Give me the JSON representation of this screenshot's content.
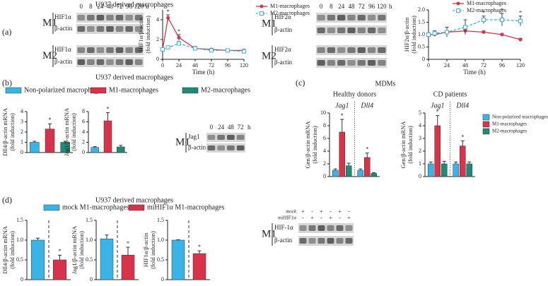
{
  "panels": {
    "a": {
      "label": "(a)",
      "title": "U937 derived macrophages"
    },
    "b": {
      "label": "(b)",
      "title": "U937 derived macrophages",
      "legend": [
        {
          "name": "Non-polarized macrophages",
          "color": "#3ab4e6"
        },
        {
          "name": "M1-macrophages",
          "color": "#d7334a"
        },
        {
          "name": "M2-macrophages",
          "color": "#1f8a78"
        }
      ]
    },
    "c": {
      "label": "(c)",
      "title": "MDMs",
      "legend": [
        {
          "name": "Non-polarized macrophages",
          "color": "#3ab4e6"
        },
        {
          "name": "M1-macrophages",
          "color": "#d7334a"
        },
        {
          "name": "M2-macrophages",
          "color": "#1f8a78"
        }
      ]
    },
    "d": {
      "label": "(d)",
      "title": "U937 derived macrophages",
      "legend": [
        {
          "name": "mock M1-macrophages",
          "color": "#3ab4e6"
        },
        {
          "name": "miHIF1α M1-macrophages",
          "color": "#d7334a"
        }
      ]
    }
  },
  "blots": [
    {
      "lanes": [
        "0",
        "8",
        "24",
        "48",
        "72",
        "96",
        "120"
      ],
      "unit": "h",
      "groups": [
        {
          "label": "M1",
          "rows": [
            "HIF1α",
            "β-actin"
          ]
        },
        {
          "label": "M2",
          "rows": [
            "HIF1α",
            "β-actin"
          ]
        }
      ]
    },
    {
      "lanes": [
        "0",
        "8",
        "24",
        "48",
        "72",
        "96",
        "120"
      ],
      "unit": "h",
      "groups": [
        {
          "label": "M1",
          "rows": [
            "HIF2α",
            "β-actin"
          ]
        },
        {
          "label": "M2",
          "rows": [
            "HIF2α",
            "β-actin"
          ]
        }
      ]
    },
    {
      "lanes": [
        "0",
        "24",
        "48",
        "72"
      ],
      "unit": "h",
      "groups": [
        {
          "label": "M1",
          "rows": [
            "Jag1",
            "β-actin"
          ]
        }
      ]
    },
    {
      "conditions": [
        {
          "label": "mock",
          "signs": [
            "+",
            "-",
            "+",
            "-",
            "+",
            "-"
          ]
        },
        {
          "label": "miHIF1α",
          "signs": [
            "-",
            "+",
            "-",
            "+",
            "-",
            "+"
          ]
        }
      ],
      "groups": [
        {
          "label": "M1",
          "rows": [
            "HIF-1α",
            "β-actin"
          ]
        }
      ]
    }
  ],
  "chart_data": [
    {
      "type": "line",
      "ylabel": [
        "HIF1α/β-actin",
        "(fold induction)"
      ],
      "xlabel": "Time (h)",
      "x": [
        0,
        8,
        24,
        48,
        72,
        96,
        120
      ],
      "xlim": [
        0,
        120
      ],
      "xticks": [
        0,
        24,
        48,
        72,
        96,
        120
      ],
      "ylim": [
        0,
        5
      ],
      "yticks": [
        0,
        2,
        4
      ],
      "series": [
        {
          "name": "M1-macrophages",
          "color": "#d7334a",
          "marker": "circle",
          "dash": false,
          "values": [
            1.0,
            4.2,
            2.2,
            1.1,
            1.0,
            0.9,
            0.9
          ],
          "errors": [
            0.1,
            0.3,
            0.3,
            0.2,
            0.1,
            0.1,
            0.1
          ],
          "stars": [
            null,
            "*",
            "*",
            null,
            null,
            null,
            null
          ]
        },
        {
          "name": "M2-macrophages",
          "color": "#3ab4e6",
          "marker": "square",
          "dash": true,
          "values": [
            1.0,
            1.2,
            1.6,
            1.1,
            0.9,
            0.9,
            0.8
          ],
          "errors": [
            0.1,
            0.1,
            0.2,
            0.1,
            0.1,
            0.1,
            0.1
          ],
          "stars": [
            null,
            null,
            null,
            null,
            null,
            null,
            null
          ]
        }
      ]
    },
    {
      "type": "line",
      "ylabel": [
        "HIF2α/β-actin",
        "(fold induction)"
      ],
      "xlabel": "Time (h)",
      "x": [
        0,
        8,
        24,
        48,
        72,
        96,
        120
      ],
      "xlim": [
        0,
        120
      ],
      "xticks": [
        0,
        24,
        48,
        72,
        96,
        120
      ],
      "ylim": [
        0,
        2
      ],
      "yticks": [
        0,
        0.5,
        {
          "value": 1,
          "label": "1.0"
        },
        1.5,
        {
          "value": 2,
          "label": "2.0"
        }
      ],
      "series": [
        {
          "name": "M1-macrophages",
          "color": "#d7334a",
          "marker": "circle",
          "dash": false,
          "values": [
            1.0,
            1.0,
            1.1,
            1.15,
            1.1,
            1.0,
            0.8
          ],
          "errors": [
            0.05,
            0.05,
            0.05,
            0.05,
            0.05,
            0.05,
            0.05
          ],
          "stars": [
            null,
            null,
            null,
            null,
            null,
            null,
            null
          ]
        },
        {
          "name": "M2-macrophages",
          "color": "#3ab4e6",
          "marker": "square",
          "dash": true,
          "values": [
            1.0,
            1.05,
            1.1,
            1.3,
            1.6,
            1.6,
            1.55
          ],
          "errors": [
            0.05,
            0.1,
            0.2,
            0.3,
            0.15,
            0.25,
            0.2
          ],
          "stars": [
            null,
            null,
            null,
            null,
            "*",
            "*",
            "*"
          ]
        }
      ]
    },
    {
      "type": "bar",
      "ylabel": [
        "Dll4/β-actin mRNA",
        "(fold induction)"
      ],
      "ylim": [
        0,
        4
      ],
      "yticks": [
        0,
        1,
        2,
        3,
        4
      ],
      "values": [
        1.0,
        2.3,
        1.0
      ],
      "errors": [
        0.1,
        0.5,
        0.1
      ],
      "stars": [
        null,
        "*",
        null
      ],
      "colors": [
        "#3ab4e6",
        "#d7334a",
        "#1f8a78"
      ],
      "divider": false
    },
    {
      "type": "bar",
      "ylabel": [
        "Jag1/β-actin mRNA",
        "(fold induction)"
      ],
      "ylim": [
        0,
        8
      ],
      "yticks": [
        0,
        2,
        4,
        6,
        8
      ],
      "values": [
        1.0,
        6.2,
        1.1
      ],
      "errors": [
        0.15,
        1.6,
        0.3
      ],
      "stars": [
        null,
        "*",
        null
      ],
      "colors": [
        "#3ab4e6",
        "#d7334a",
        "#1f8a78"
      ],
      "divider": false
    },
    {
      "type": "grouped_bar",
      "title": "Healthy donors",
      "ylabel": [
        "Gen/β-actin mRNA",
        "(fold induction)"
      ],
      "categories": [
        "Jag1",
        "Dll4"
      ],
      "ylim": [
        0,
        10
      ],
      "yticks": [
        0,
        2,
        4,
        6,
        8,
        10
      ],
      "series": [
        {
          "color": "#3ab4e6",
          "values": [
            1.0,
            1.0
          ],
          "errors": [
            0.2,
            0.2
          ],
          "stars": [
            null,
            null
          ]
        },
        {
          "color": "#d7334a",
          "values": [
            7.0,
            3.0
          ],
          "errors": [
            2.0,
            0.7
          ],
          "stars": [
            "*",
            "*"
          ]
        },
        {
          "color": "#1f8a78",
          "values": [
            1.7,
            0.5
          ],
          "errors": [
            0.4,
            0.1
          ],
          "stars": [
            null,
            null
          ]
        }
      ]
    },
    {
      "type": "grouped_bar",
      "title": "CD patients",
      "ylabel": [
        "Gen/β-actin mRNA",
        "(fold induction)"
      ],
      "categories": [
        "Jag1",
        "Dll4"
      ],
      "ylim": [
        0,
        5
      ],
      "yticks": [
        0,
        1,
        2,
        3,
        4,
        5
      ],
      "series": [
        {
          "color": "#3ab4e6",
          "values": [
            1.0,
            1.0
          ],
          "errors": [
            0.15,
            0.15
          ],
          "stars": [
            null,
            null
          ]
        },
        {
          "color": "#d7334a",
          "values": [
            4.0,
            2.4
          ],
          "errors": [
            0.8,
            0.4
          ],
          "stars": [
            "*",
            "*"
          ]
        },
        {
          "color": "#1f8a78",
          "values": [
            1.0,
            1.0
          ],
          "errors": [
            0.2,
            0.15
          ],
          "stars": [
            null,
            null
          ]
        }
      ]
    },
    {
      "type": "bar",
      "ylabel": [
        "Dll4/β-actin mRNA",
        "(fold induction)"
      ],
      "ylim": [
        0,
        1.5
      ],
      "yticks": [
        0,
        0.5,
        {
          "value": 1,
          "label": "1.0"
        },
        1.5
      ],
      "values": [
        1.0,
        0.5
      ],
      "errors": [
        0.05,
        0.12
      ],
      "stars": [
        null,
        "*"
      ],
      "colors": [
        "#3ab4e6",
        "#d7334a"
      ],
      "divider": true
    },
    {
      "type": "bar",
      "ylabel": [
        "Jag1/β-actin mRNA",
        "(fold induction)"
      ],
      "ylim": [
        0,
        1.5
      ],
      "yticks": [
        0,
        0.5,
        {
          "value": 1,
          "label": "1.0"
        },
        1.5
      ],
      "values": [
        1.03,
        0.62
      ],
      "errors": [
        0.1,
        0.2
      ],
      "stars": [
        null,
        "*"
      ],
      "colors": [
        "#3ab4e6",
        "#d7334a"
      ],
      "divider": true
    },
    {
      "type": "bar",
      "ylabel": [
        "HIF1α/β-actin",
        "(fold induction)"
      ],
      "ylim": [
        0,
        1.5
      ],
      "yticks": [
        0,
        0.5,
        {
          "value": 1,
          "label": "1.0"
        },
        1.5
      ],
      "values": [
        1.0,
        0.66
      ],
      "errors": [
        0.01,
        0.07
      ],
      "stars": [
        null,
        "*"
      ],
      "colors": [
        "#3ab4e6",
        "#d7334a"
      ],
      "divider": true
    }
  ]
}
